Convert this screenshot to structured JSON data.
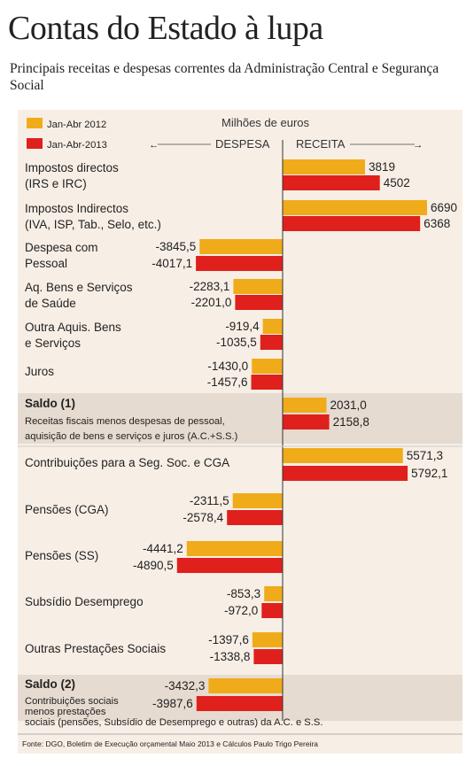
{
  "header": {
    "title": "Contas do Estado à lupa",
    "subtitle": "Principais receitas e despesas correntes da Administração Central e Segurança Social"
  },
  "legend": {
    "items": [
      {
        "label": "Jan-Abr 2012",
        "color": "#f0ab1b"
      },
      {
        "label": "Jan-Abr-2013",
        "color": "#e0201c"
      }
    ],
    "unit": "Milhões de euros",
    "despesa": "DESPESA",
    "receita": "RECEITA"
  },
  "colors": {
    "y2012": "#f0ab1b",
    "y2013": "#e0201c",
    "panel": "#f7efe6",
    "band": "#e6dbd0"
  },
  "source": "Fonte: DGO, Boletim de Execução orçamental Maio 2013 e Cálculos Paulo Trigo Pereira",
  "chart_data": {
    "type": "bar",
    "orientation": "horizontal",
    "unit": "Milhões de euros",
    "series": [
      {
        "name": "Jan-Abr 2012",
        "values": [
          3819,
          6690,
          -3845.5,
          -2283.1,
          -919.4,
          -1430.0,
          2031.0,
          5571.3,
          -2311.5,
          -4441.2,
          -853.3,
          -1397.6,
          -3432.3
        ]
      },
      {
        "name": "Jan-Abr-2013",
        "values": [
          4502,
          6368,
          -4017.1,
          -2201.0,
          -1035.5,
          -1457.6,
          2158.8,
          5792.1,
          -2578.4,
          -4890.5,
          -972.0,
          -1338.8,
          -3987.6
        ]
      }
    ],
    "categories": [
      {
        "lines": [
          "Impostos directos",
          "(IRS e IRC)"
        ],
        "labels": [
          "3819",
          "4502"
        ]
      },
      {
        "lines": [
          "Impostos Indirectos",
          "(IVA, ISP, Tab., Selo, etc.)"
        ],
        "labels": [
          "6690",
          "6368"
        ]
      },
      {
        "lines": [
          "Despesa com",
          "Pessoal"
        ],
        "labels": [
          "-3845,5",
          "-4017,1"
        ]
      },
      {
        "lines": [
          "Aq. Bens e Serviços",
          "de Saúde"
        ],
        "labels": [
          "-2283,1",
          "-2201,0"
        ]
      },
      {
        "lines": [
          "Outra Aquis. Bens",
          "e Serviços"
        ],
        "labels": [
          "-919,4",
          "-1035,5"
        ]
      },
      {
        "lines": [
          "Juros"
        ],
        "labels": [
          "-1430,0",
          "-1457,6"
        ]
      },
      {
        "lines": [
          "Saldo (1)"
        ],
        "note": [
          "Receitas fiscais menos despesas de pessoal,",
          "aquisição de bens e serviços e juros (A.C.+S.S.)"
        ],
        "labels": [
          "2031,0",
          "2158,8"
        ],
        "highlight": true
      },
      {
        "lines": [
          "Contribuições para a Seg. Soc. e CGA"
        ],
        "labels": [
          "5571,3",
          "5792,1"
        ]
      },
      {
        "lines": [
          "Pensões (CGA)"
        ],
        "labels": [
          "-2311,5",
          "-2578,4"
        ]
      },
      {
        "lines": [
          "Pensões (SS)"
        ],
        "labels": [
          "-4441,2",
          "-4890,5"
        ]
      },
      {
        "lines": [
          "Subsídio Desemprego"
        ],
        "labels": [
          "-853,3",
          "-972,0"
        ]
      },
      {
        "lines": [
          "Outras Prestações Sociais"
        ],
        "labels": [
          "-1397,6",
          "-1338,8"
        ]
      },
      {
        "lines": [
          "Saldo (2)"
        ],
        "note": [
          "Contribuições sociais",
          "menos prestações",
          "sociais (pensões, Subsídio de Desemprego e outras) da A.C. e S.S."
        ],
        "labels": [
          "-3432,3",
          "-3987,6"
        ],
        "highlight": true
      }
    ],
    "axis_center": 0,
    "grid": false,
    "legend_position": "top-left"
  }
}
